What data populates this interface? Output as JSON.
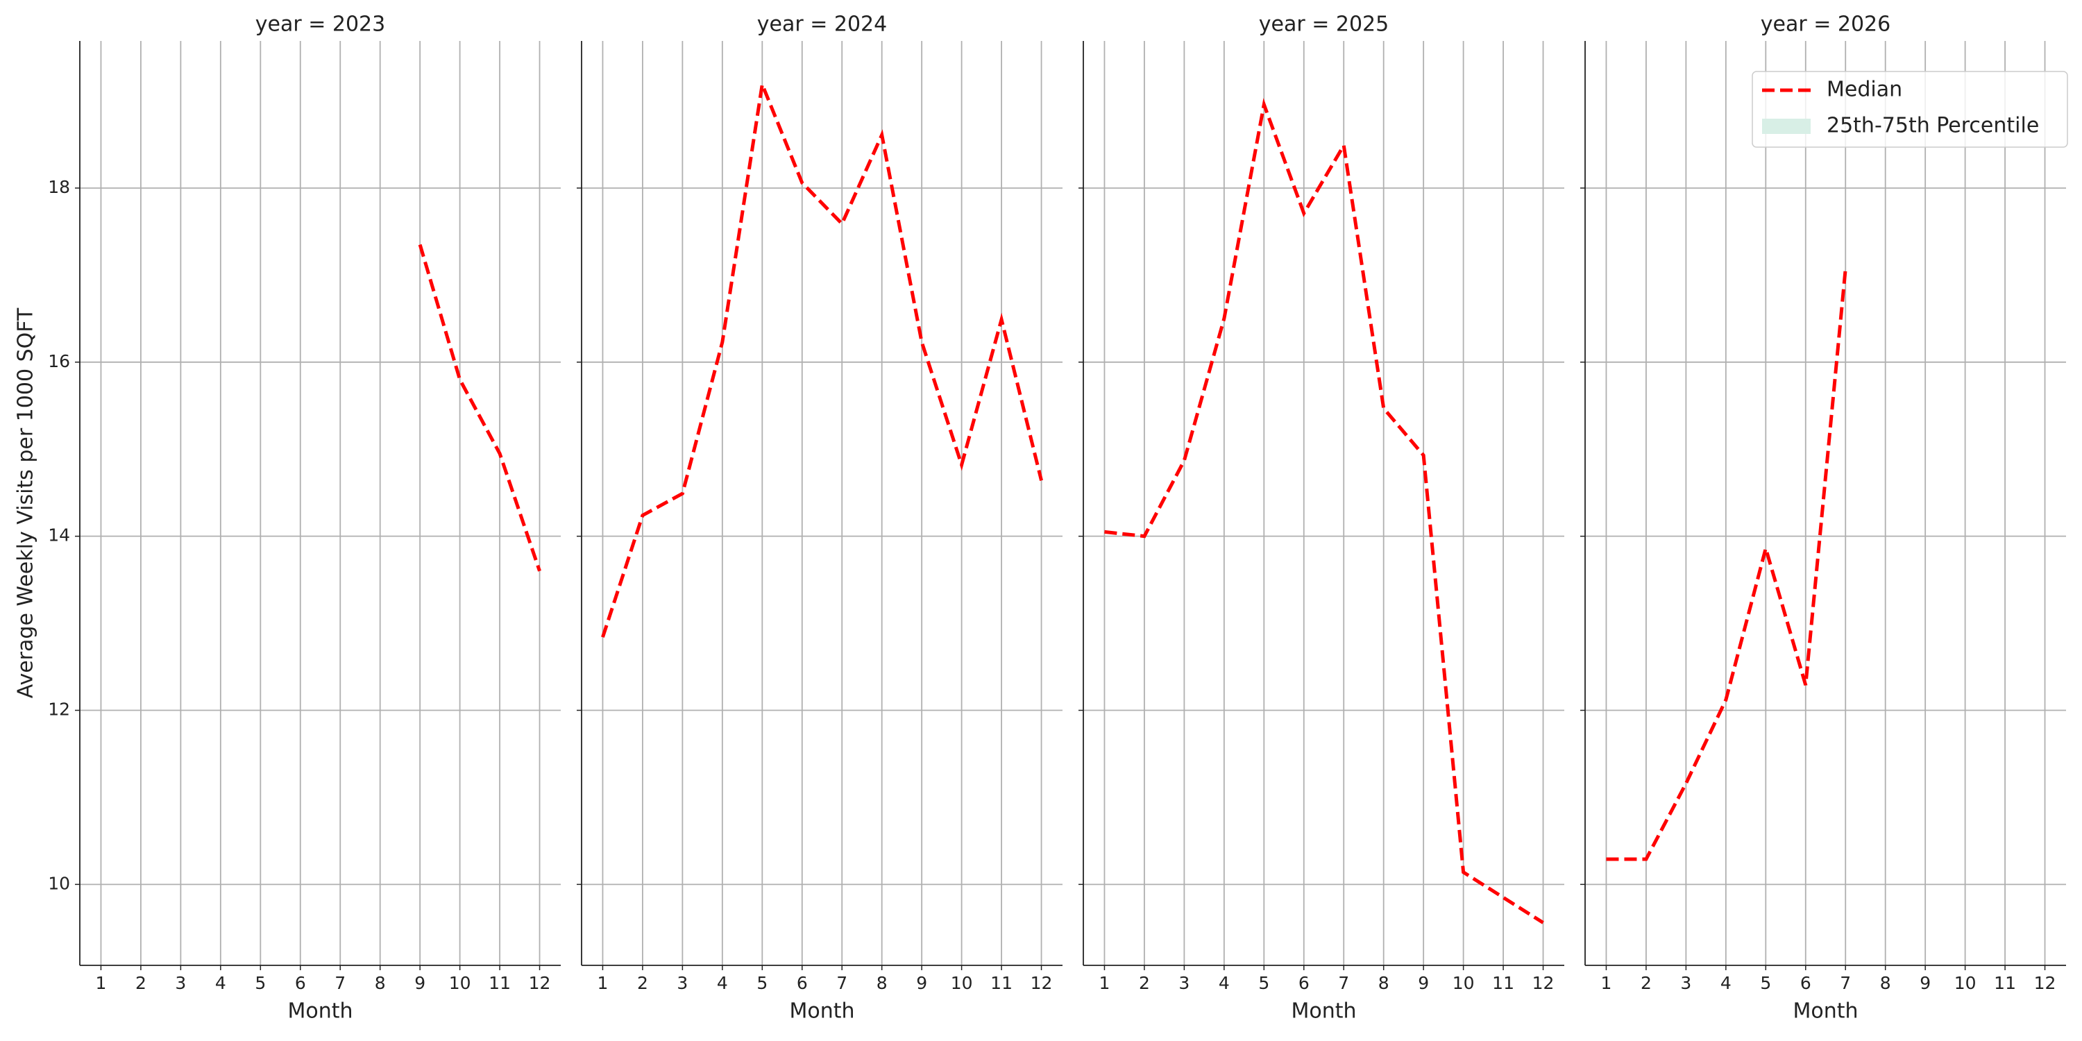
{
  "chart_data": [
    {
      "type": "line",
      "title": "year = 2023",
      "xlabel": "Month",
      "ylabel": "Average Weekly Visits per 1000 SQFT",
      "x": [
        9,
        10,
        11,
        12
      ],
      "series": [
        {
          "name": "Median",
          "color": "#ff0000",
          "values": [
            17.35,
            15.8,
            14.95,
            13.6
          ]
        }
      ],
      "xlim": [
        0.47,
        12.53
      ],
      "ylim": [
        9.07,
        19.69
      ],
      "xticks": [
        1,
        2,
        3,
        4,
        5,
        6,
        7,
        8,
        9,
        10,
        11,
        12
      ],
      "yticks": [
        10,
        12,
        14,
        16,
        18
      ],
      "grid": true
    },
    {
      "type": "line",
      "title": "year = 2024",
      "xlabel": "Month",
      "x": [
        1,
        2,
        3,
        4,
        5,
        6,
        7,
        8,
        9,
        10,
        11,
        12
      ],
      "series": [
        {
          "name": "Median",
          "color": "#ff0000",
          "values": [
            12.84,
            14.24,
            14.49,
            16.23,
            19.19,
            18.06,
            17.59,
            18.61,
            16.23,
            14.82,
            16.49,
            14.64
          ]
        }
      ],
      "xlim": [
        0.47,
        12.53
      ],
      "ylim": [
        9.07,
        19.69
      ],
      "xticks": [
        1,
        2,
        3,
        4,
        5,
        6,
        7,
        8,
        9,
        10,
        11,
        12
      ],
      "yticks": [
        10,
        12,
        14,
        16,
        18
      ],
      "grid": true
    },
    {
      "type": "line",
      "title": "year = 2025",
      "xlabel": "Month",
      "x": [
        1,
        2,
        3,
        4,
        5,
        6,
        7,
        8,
        9,
        10,
        11,
        12
      ],
      "series": [
        {
          "name": "Median",
          "color": "#ff0000",
          "values": [
            14.05,
            14.0,
            14.87,
            16.5,
            18.96,
            17.71,
            18.49,
            15.47,
            14.93,
            10.14,
            9.85,
            9.56
          ]
        }
      ],
      "xlim": [
        0.47,
        12.53
      ],
      "ylim": [
        9.07,
        19.69
      ],
      "xticks": [
        1,
        2,
        3,
        4,
        5,
        6,
        7,
        8,
        9,
        10,
        11,
        12
      ],
      "yticks": [
        10,
        12,
        14,
        16,
        18
      ],
      "grid": true
    },
    {
      "type": "line",
      "title": "year = 2026",
      "xlabel": "Month",
      "x": [
        1,
        2,
        3,
        4,
        5,
        6,
        7
      ],
      "series": [
        {
          "name": "Median",
          "color": "#ff0000",
          "values": [
            10.29,
            10.29,
            11.16,
            12.12,
            13.86,
            12.29,
            17.07
          ]
        }
      ],
      "xlim": [
        0.47,
        12.53
      ],
      "ylim": [
        9.07,
        19.69
      ],
      "xticks": [
        1,
        2,
        3,
        4,
        5,
        6,
        7,
        8,
        9,
        10,
        11,
        12
      ],
      "yticks": [
        10,
        12,
        14,
        16,
        18
      ],
      "grid": true,
      "legend": {
        "position": "upper right",
        "entries": [
          {
            "label": "Median",
            "color": "#ff0000",
            "style": "dashed"
          },
          {
            "label": "25th-75th Percentile",
            "color": "#d8efe6",
            "style": "patch"
          }
        ]
      }
    }
  ]
}
